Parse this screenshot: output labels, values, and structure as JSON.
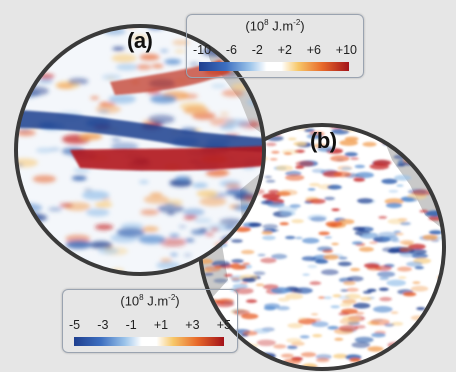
{
  "panels": [
    {
      "label": "(a)",
      "legend": {
        "unit_base": "(10",
        "unit_exp": "8",
        "unit_rest": " J.m",
        "unit_exp2": "-2",
        "unit_close": ")",
        "ticks": [
          "-10",
          "-6",
          "-2",
          "+2",
          "+6",
          "+10"
        ]
      }
    },
    {
      "label": "(b)",
      "legend": {
        "unit_base": "(10",
        "unit_exp": "8",
        "unit_rest": " J.m",
        "unit_exp2": "-2",
        "unit_close": ")",
        "ticks": [
          "-5",
          "-3",
          "-1",
          "+1",
          "+3",
          "+5"
        ]
      }
    }
  ],
  "colors": {
    "background": "#e6e6e6",
    "globe_rim": "#3a3a3a",
    "land": "#c9c9c9",
    "strong_negative": "#1f3f8f",
    "negative": "#5a8fd0",
    "neutral": "#ffffff",
    "positive": "#f2a35a",
    "strong_positive": "#b2161c"
  }
}
